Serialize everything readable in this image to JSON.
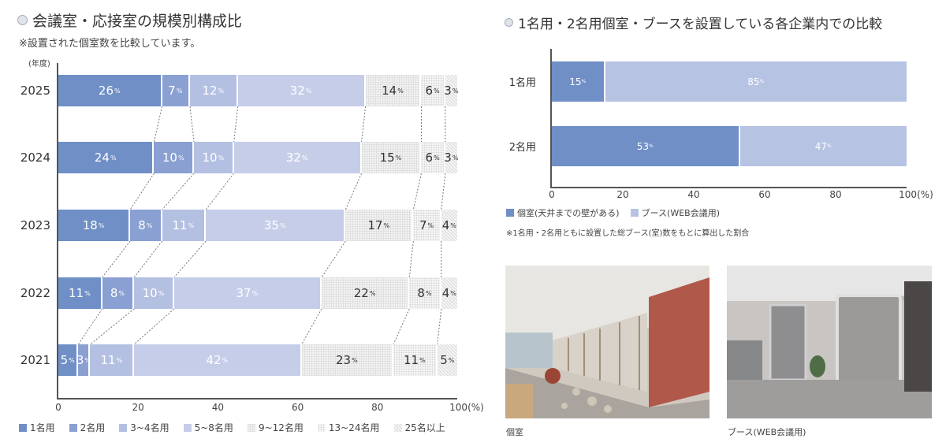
{
  "left": {
    "title": "会議室・応接室の規模別構成比",
    "subtitle": "※設置された個室数を比較しています。",
    "y_axis_unit": "(年度)",
    "x_ticks": [
      "0",
      "20",
      "40",
      "60",
      "80",
      "100(%)"
    ],
    "legend": [
      "1名用",
      "2名用",
      "3~4名用",
      "5~8名用",
      "9~12名用",
      "13~24名用",
      "25名以上"
    ]
  },
  "right": {
    "title": "1名用・2名用個室・ブースを設置している各企業内での比較",
    "x_ticks": [
      "0",
      "20",
      "40",
      "60",
      "80",
      "100(%)"
    ],
    "rows": [
      "1名用",
      "2名用"
    ],
    "legend": [
      "個室(天井までの壁がある)",
      "ブース(WEB会議用)"
    ],
    "note": "※1名用・2名用ともに設置した総ブース(室)数をもとに算出した割合"
  },
  "photos": [
    {
      "caption": "個室"
    },
    {
      "caption": "ブース(WEB会議用)"
    }
  ],
  "pct_symbol": "%",
  "colors": {
    "c1": "#6f8fc6",
    "c2": "#8aa0d2",
    "c3": "#b4c0e2",
    "c4": "#c6cde8",
    "booth": "#b7c3e3"
  },
  "chart_data": [
    {
      "type": "bar",
      "orientation": "horizontal-stacked-100",
      "title": "会議室・応接室の規模別構成比",
      "subtitle": "※設置された個室数を比較しています。",
      "xlabel": "(%)",
      "ylabel": "(年度)",
      "xlim": [
        0,
        100
      ],
      "categories": [
        "2025",
        "2024",
        "2023",
        "2022",
        "2021"
      ],
      "series": [
        {
          "name": "1名用",
          "values": [
            26,
            24,
            18,
            11,
            5
          ]
        },
        {
          "name": "2名用",
          "values": [
            7,
            10,
            8,
            8,
            3
          ]
        },
        {
          "name": "3~4名用",
          "values": [
            12,
            10,
            11,
            10,
            11
          ]
        },
        {
          "name": "5~8名用",
          "values": [
            32,
            32,
            35,
            37,
            42
          ]
        },
        {
          "name": "9~12名用",
          "values": [
            14,
            15,
            17,
            22,
            23
          ]
        },
        {
          "name": "13~24名用",
          "values": [
            6,
            6,
            7,
            8,
            11
          ]
        },
        {
          "name": "25名以上",
          "values": [
            3,
            3,
            4,
            4,
            5
          ]
        }
      ],
      "legend_position": "bottom"
    },
    {
      "type": "bar",
      "orientation": "horizontal-stacked-100",
      "title": "1名用・2名用個室・ブースを設置している各企業内での比較",
      "xlabel": "(%)",
      "xlim": [
        0,
        100
      ],
      "categories": [
        "1名用",
        "2名用"
      ],
      "series": [
        {
          "name": "個室(天井までの壁がある)",
          "values": [
            15,
            53
          ]
        },
        {
          "name": "ブース(WEB会議用)",
          "values": [
            85,
            47
          ]
        }
      ],
      "legend_position": "bottom",
      "note": "※1名用・2名用ともに設置した総ブース(室)数をもとに算出した割合"
    }
  ]
}
